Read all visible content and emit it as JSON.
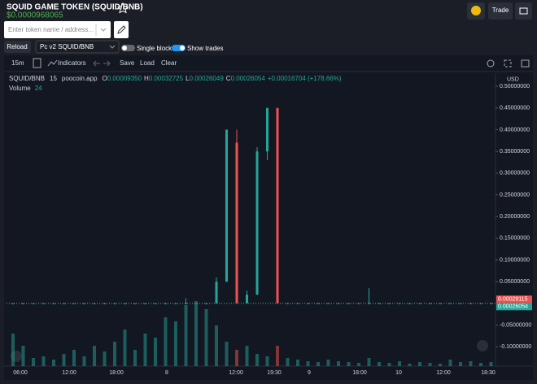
{
  "header": {
    "title": "SQUID GAME TOKEN (SQUID/BNB)",
    "price": "$0.0000968065",
    "trade_button": "Trade"
  },
  "search": {
    "placeholder": "Enter token name / address..."
  },
  "controls": {
    "reload": "Reload",
    "pair_select": "Pc v2 SQUID/BNB",
    "single_blocks": "Single blocks",
    "show_trades": "Show trades"
  },
  "toolbar": {
    "interval": "15m",
    "indicators": "Indicators",
    "save": "Save",
    "load": "Load",
    "clear": "Clear",
    "currency": "USD"
  },
  "legend": {
    "symbol": "SQUID/BNB",
    "interval": "15",
    "source": "poocoin.app",
    "o_label": "O",
    "o": "0.00009350",
    "h_label": "H",
    "h": "0.00032725",
    "l_label": "L",
    "l": "0.00026049",
    "c_label": "C",
    "c": "0.00026054",
    "change": "+0.00016704 (+178.66%)",
    "volume_label": "Volume",
    "volume": "24"
  },
  "chart_data": {
    "type": "candlestick",
    "up_color": "#26a69a",
    "down_color": "#ef5350",
    "grid": false,
    "open": [
      0.0001,
      0.0001,
      0.0001,
      0.0001,
      0.0001,
      0.0001,
      0.0001,
      0.0001,
      0.0001,
      0.0001,
      0.0001,
      0.0001,
      0.0001,
      0.0001,
      0.0001,
      0.0001,
      0.0001,
      0.0001,
      0.0001,
      0.0001,
      0.0001,
      0.05,
      0.37,
      0.0003,
      0.02,
      0.35,
      0.45,
      0.0003,
      0.0003,
      0.0003,
      0.0003,
      0.0003,
      0.0003,
      0.0003,
      0.0003,
      0.0003,
      0.0003,
      0.0003,
      0.0003,
      0.0003,
      0.0003,
      0.0003,
      0.0003,
      0.0003,
      0.0003,
      0.0003,
      0.0003,
      0.0003
    ],
    "high": [
      0.0001,
      0.0001,
      0.0001,
      0.0001,
      0.0001,
      0.0001,
      0.0001,
      0.0001,
      0.0001,
      0.0001,
      0.0001,
      0.0001,
      0.0001,
      0.0001,
      0.0001,
      0.0001,
      0.0001,
      0.012,
      0.0001,
      0.0001,
      0.06,
      0.4,
      0.4,
      0.03,
      0.36,
      0.45,
      0.45,
      0.0003,
      0.0003,
      0.0003,
      0.0003,
      0.0003,
      0.0003,
      0.0003,
      0.0003,
      0.035,
      0.0003,
      0.0003,
      0.0003,
      0.0003,
      0.0003,
      0.0003,
      0.0003,
      0.0003,
      0.0003,
      0.0003,
      0.0003,
      0.0003
    ],
    "low": [
      0.0001,
      0.0001,
      0.0001,
      0.0001,
      0.0001,
      0.0001,
      0.0001,
      0.0001,
      0.0001,
      0.0001,
      0.0001,
      0.0001,
      0.0001,
      0.0001,
      0.0001,
      0.0001,
      0.0001,
      0.0001,
      0.0001,
      0.0001,
      0.0001,
      0.05,
      0.0003,
      0.0003,
      0.02,
      0.33,
      0.0003,
      0.0003,
      0.0003,
      0.0003,
      0.0003,
      0.0003,
      0.0003,
      0.0003,
      0.0003,
      0.0003,
      0.0003,
      0.0003,
      0.0003,
      0.0003,
      0.0003,
      0.0003,
      0.0003,
      0.0003,
      0.0003,
      0.0003,
      0.0003,
      0.0003
    ],
    "close": [
      0.0001,
      0.0001,
      0.0001,
      0.0001,
      0.0001,
      0.0001,
      0.0001,
      0.0001,
      0.0001,
      0.0001,
      0.0001,
      0.0001,
      0.0001,
      0.0001,
      0.0001,
      0.0001,
      0.0001,
      0.0001,
      0.0001,
      0.0001,
      0.05,
      0.4,
      0.0003,
      0.02,
      0.35,
      0.45,
      0.0003,
      0.0003,
      0.0003,
      0.0003,
      0.0003,
      0.0003,
      0.0003,
      0.0003,
      0.0003,
      0.0003,
      0.0003,
      0.0003,
      0.0003,
      0.0003,
      0.0003,
      0.0003,
      0.0003,
      0.0003,
      0.0003,
      0.0003,
      0.0003,
      0.0003
    ],
    "volume": [
      40,
      25,
      10,
      12,
      8,
      15,
      20,
      12,
      25,
      18,
      30,
      45,
      20,
      40,
      35,
      60,
      55,
      75,
      80,
      70,
      50,
      30,
      20,
      25,
      15,
      12,
      25,
      10,
      8,
      6,
      5,
      8,
      6,
      5,
      4,
      10,
      5,
      4,
      6,
      3,
      5,
      4,
      3,
      8,
      5,
      6,
      4,
      5
    ],
    "ylim": [
      -0.163,
      0.53
    ],
    "yticks": [
      {
        "value": 0.5,
        "label": "0.50000000"
      },
      {
        "value": 0.45,
        "label": "0.45000000"
      },
      {
        "value": 0.4,
        "label": "0.40000000"
      },
      {
        "value": 0.35,
        "label": "0.35000000"
      },
      {
        "value": 0.3,
        "label": "0.30000000"
      },
      {
        "value": 0.25,
        "label": "0.25000000"
      },
      {
        "value": 0.2,
        "label": "0.20000000"
      },
      {
        "value": 0.15,
        "label": "0.15000000"
      },
      {
        "value": 0.1,
        "label": "0.10000000"
      },
      {
        "value": 0.05,
        "label": "0.05000000"
      },
      {
        "value": -0.05,
        "label": "-0.05000000"
      },
      {
        "value": -0.1,
        "label": "-0.10000000"
      }
    ],
    "price_tags": [
      {
        "value": 0.00029115,
        "color": "#ef5350"
      },
      {
        "value": 0.00026054,
        "color": "#26a69a"
      }
    ],
    "xtick_labels": [
      "06:00",
      "12:00",
      "18:00",
      "8",
      "12:00",
      "19:30",
      "9",
      "18:00",
      "10",
      "12:00",
      "18:30"
    ]
  }
}
